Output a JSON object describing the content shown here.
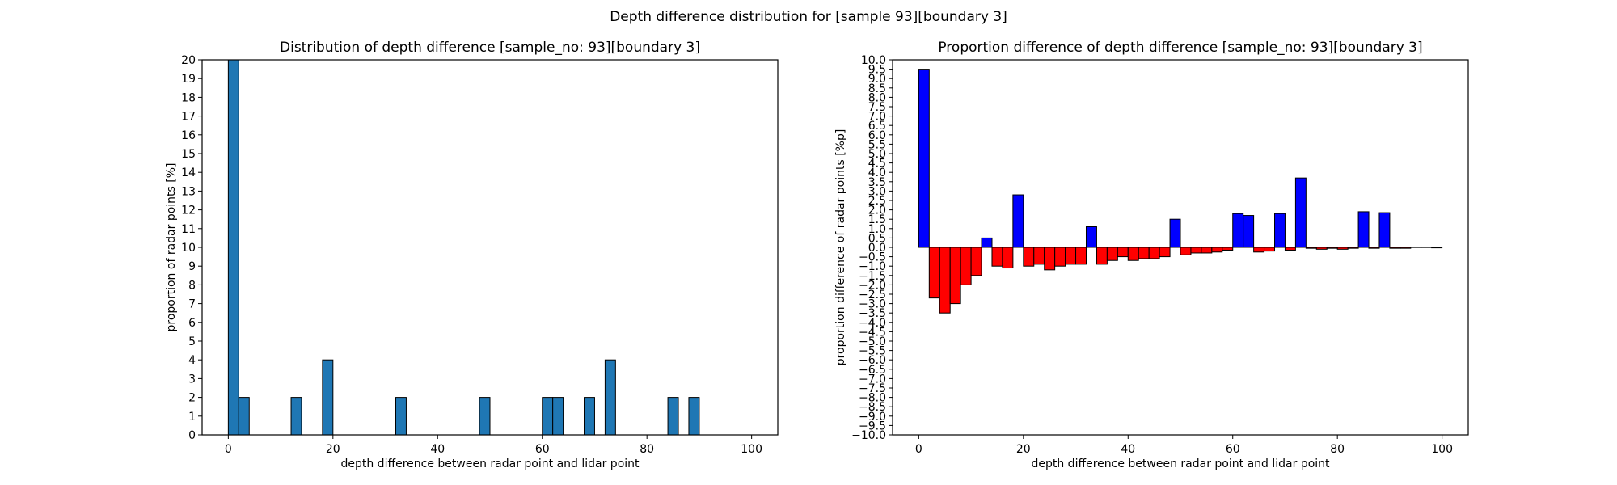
{
  "figure": {
    "suptitle": "Depth difference distribution for [sample 93][boundary 3]"
  },
  "chart_data": [
    {
      "type": "bar",
      "title": "Distribution of depth difference [sample_no: 93][boundary 3]",
      "xlabel": "depth difference between radar point and lidar point",
      "ylabel": "proportion of radar points [%]",
      "xlim": [
        -5,
        105
      ],
      "ylim": [
        0,
        20
      ],
      "xticks": [
        0,
        20,
        40,
        60,
        80,
        100
      ],
      "yticks": [
        0,
        1,
        2,
        3,
        4,
        5,
        6,
        7,
        8,
        9,
        10,
        11,
        12,
        13,
        14,
        15,
        16,
        17,
        18,
        19,
        20
      ],
      "bar_width": 2,
      "bar_color": "#1f77b4",
      "edge_color": "#000000",
      "x": [
        1,
        3,
        13,
        19,
        33,
        49,
        61,
        63,
        69,
        73,
        85,
        89
      ],
      "values": [
        20,
        2,
        2,
        4,
        2,
        2,
        2,
        2,
        2,
        4,
        2,
        2
      ]
    },
    {
      "type": "bar",
      "title": "Proportion difference of depth difference [sample_no: 93][boundary 3]",
      "xlabel": "depth difference between radar point and lidar point",
      "ylabel": "proportion difference of radar points [%p]",
      "xlim": [
        -5,
        105
      ],
      "ylim": [
        -10,
        10
      ],
      "xticks": [
        0,
        20,
        40,
        60,
        80,
        100
      ],
      "yticks": [
        -10.0,
        -9.5,
        -9.0,
        -8.5,
        -8.0,
        -7.5,
        -7.0,
        -6.5,
        -6.0,
        -5.5,
        -5.0,
        -4.5,
        -4.0,
        -3.5,
        -3.0,
        -2.5,
        -2.0,
        -1.5,
        -1.0,
        -0.5,
        0.0,
        0.5,
        1.0,
        1.5,
        2.0,
        2.5,
        3.0,
        3.5,
        4.0,
        4.5,
        5.0,
        5.5,
        6.0,
        6.5,
        7.0,
        7.5,
        8.0,
        8.5,
        9.0,
        9.5,
        10.0
      ],
      "bar_width": 2,
      "positive_color": "#0000ff",
      "negative_color": "#ff0000",
      "edge_color": "#000000",
      "x": [
        1,
        3,
        5,
        7,
        9,
        11,
        13,
        15,
        17,
        19,
        21,
        23,
        25,
        27,
        29,
        31,
        33,
        35,
        37,
        39,
        41,
        43,
        45,
        47,
        49,
        51,
        53,
        55,
        57,
        59,
        61,
        63,
        65,
        67,
        69,
        71,
        73,
        75,
        77,
        79,
        81,
        83,
        85,
        87,
        89,
        91,
        93,
        95,
        97,
        99
      ],
      "values": [
        9.5,
        -2.7,
        -3.5,
        -3.0,
        -2.0,
        -1.5,
        0.5,
        -1.0,
        -1.1,
        2.8,
        -1.0,
        -0.9,
        -1.2,
        -1.0,
        -0.9,
        -0.9,
        1.1,
        -0.9,
        -0.7,
        -0.5,
        -0.7,
        -0.6,
        -0.6,
        -0.5,
        1.5,
        -0.4,
        -0.3,
        -0.3,
        -0.25,
        -0.15,
        1.8,
        1.7,
        -0.25,
        -0.2,
        1.8,
        -0.15,
        3.7,
        -0.05,
        -0.1,
        -0.05,
        -0.1,
        -0.05,
        1.9,
        -0.05,
        1.85,
        -0.05,
        -0.05,
        0.02,
        0.02,
        -0.02
      ]
    }
  ]
}
